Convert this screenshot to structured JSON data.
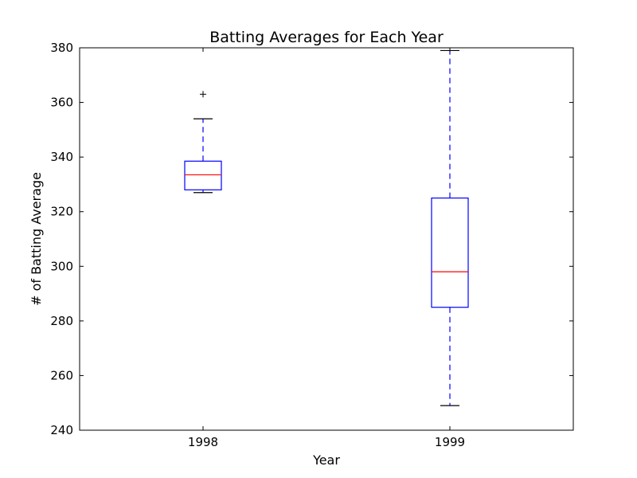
{
  "chart_data": {
    "type": "box",
    "title": "Batting Averages for Each Year",
    "xlabel": "Year",
    "ylabel": "# of Batting Average",
    "ylim": [
      240,
      380
    ],
    "yticks": [
      240,
      260,
      280,
      300,
      320,
      340,
      360,
      380
    ],
    "categories": [
      "1998",
      "1999"
    ],
    "boxes": [
      {
        "category": "1998",
        "whisker_low": 327,
        "q1": 328,
        "median": 333.5,
        "q3": 338.5,
        "whisker_high": 354,
        "outliers": [
          363
        ]
      },
      {
        "category": "1999",
        "whisker_low": 249,
        "q1": 285,
        "median": 298,
        "q3": 325,
        "whisker_high": 379,
        "outliers": []
      }
    ],
    "grid": false,
    "colors": {
      "box": "#0000ff",
      "median": "#ff0000",
      "whisker": "#0000ff",
      "cap": "#000000",
      "outlier": "#000000"
    }
  }
}
